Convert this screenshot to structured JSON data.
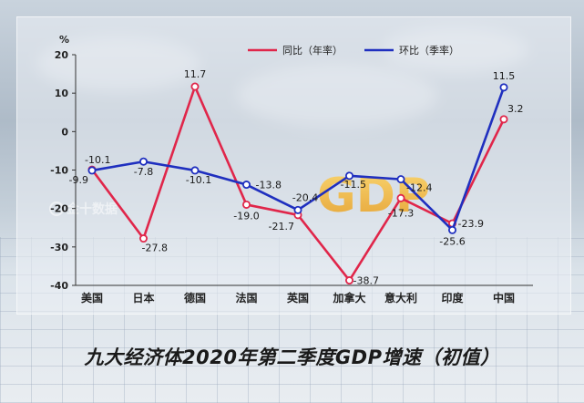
{
  "chart_data": {
    "type": "line",
    "title": "九大经济体2020年第二季度GDP增速（初值）",
    "ylabel": "%",
    "ylim": [
      -40,
      20
    ],
    "yticks": [
      20,
      10,
      0,
      -10,
      -20,
      -30,
      -40
    ],
    "ytick_labels": [
      "20",
      "10",
      "0",
      "-10",
      "-20",
      "-30",
      "-40"
    ],
    "categories": [
      "美国",
      "日本",
      "德国",
      "法国",
      "英国",
      "加拿大",
      "意大利",
      "印度",
      "中国"
    ],
    "series": [
      {
        "name": "同比（年率）",
        "color": "#e0264a",
        "values": [
          -9.9,
          -27.8,
          11.7,
          -19.0,
          -21.7,
          -38.7,
          -17.3,
          -23.9,
          3.2
        ],
        "labels": [
          "-9.9",
          "-27.8",
          "11.7",
          "-19.0",
          "-21.7",
          "-38.7",
          "-17.3",
          "-23.9",
          "3.2"
        ]
      },
      {
        "name": "环比（季率）",
        "color": "#1f2fbf",
        "values": [
          -10.1,
          -7.8,
          -10.1,
          -13.8,
          -20.4,
          -11.5,
          -12.4,
          -25.6,
          11.5
        ],
        "labels": [
          "-10.1",
          "-7.8",
          "-10.1",
          "-13.8",
          "-20.4",
          "-11.5",
          "-12.4",
          "-25.6",
          "11.5"
        ]
      }
    ],
    "legend_position": "top-right",
    "grid": false
  },
  "watermark_text": "金十数据",
  "background_text": "GDP"
}
